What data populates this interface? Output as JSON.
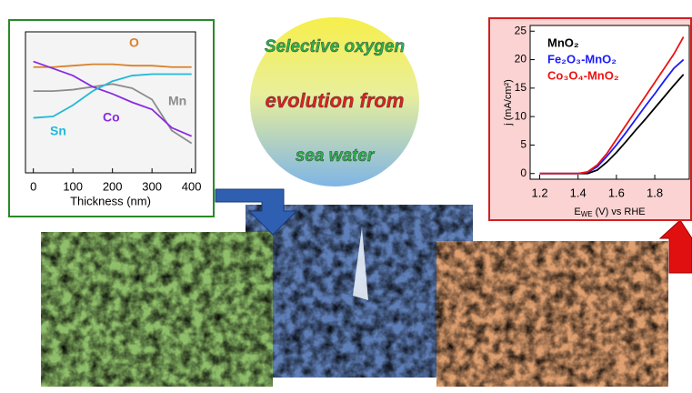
{
  "chart_data": [
    {
      "type": "line",
      "x_label": "Thickness (nm)",
      "x": [
        0,
        50,
        100,
        150,
        200,
        250,
        300,
        350,
        400
      ],
      "series": [
        {
          "name": "O",
          "color": "#d9822b",
          "values": [
            75,
            75,
            76,
            77,
            77,
            76,
            76,
            75,
            75
          ]
        },
        {
          "name": "Mn",
          "color": "#8c8c8c",
          "values": [
            58,
            58,
            59,
            61,
            63,
            60,
            52,
            30,
            21
          ]
        },
        {
          "name": "Co",
          "color": "#8a2be2",
          "values": [
            79,
            74,
            69,
            61,
            56,
            50,
            45,
            32,
            26
          ]
        },
        {
          "name": "Sn",
          "color": "#22b8d8",
          "values": [
            39,
            40,
            48,
            58,
            65,
            69,
            70,
            70,
            70
          ]
        }
      ],
      "xlim": [
        -20,
        410
      ],
      "xticks": [
        0,
        100,
        200,
        300,
        400
      ],
      "ylim": [
        0,
        100
      ]
    },
    {
      "type": "line",
      "x_label": [
        "E",
        "WE",
        " (V) vs RHE"
      ],
      "y_label": "j (mA/cm²)",
      "x": [
        1.2,
        1.3,
        1.4,
        1.45,
        1.5,
        1.55,
        1.6,
        1.65,
        1.7,
        1.75,
        1.8,
        1.85,
        1.9,
        1.95
      ],
      "series": [
        {
          "name": "MnO₂",
          "color": "#000000",
          "values": [
            0,
            0,
            0,
            0,
            0.6,
            2,
            3.7,
            5.6,
            7.6,
            9.5,
            11.5,
            13.5,
            15.5,
            17.4
          ]
        },
        {
          "name": "Fe₂O₃-MnO₂",
          "color": "#1a1aff",
          "values": [
            0,
            0,
            0,
            0.2,
            1.2,
            3,
            5,
            7.2,
            9.5,
            11.8,
            14,
            16.3,
            18.5,
            20
          ]
        },
        {
          "name": "Co₃O₄-MnO₂",
          "color": "#ee1111",
          "values": [
            0,
            0,
            0,
            0.3,
            1.5,
            3.5,
            6,
            8.5,
            11,
            13.5,
            16,
            18.5,
            21,
            24
          ]
        }
      ],
      "xlim": [
        1.15,
        1.98
      ],
      "xticks": [
        1.2,
        1.4,
        1.6,
        1.8
      ],
      "ylim": [
        -1,
        26
      ],
      "yticks": [
        0,
        5,
        10,
        15,
        20,
        25
      ]
    }
  ],
  "banner": {
    "lines": [
      "Selective oxygen",
      "evolution from",
      "sea water"
    ]
  }
}
